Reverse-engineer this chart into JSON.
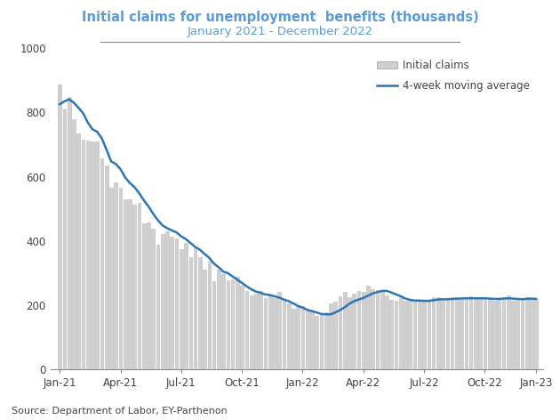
{
  "title_line1": "Initial claims for unemployment  benefits (thousands)",
  "title_line2": "January 2021 - December 2022",
  "title_color": "#5B9BD5",
  "source_text": "Source: Department of Labor, EY-Parthenon",
  "bar_color": "#D0D0D0",
  "bar_edge_color": "#B8B8B8",
  "line_color": "#2E75B6",
  "ylim": [
    0,
    1000
  ],
  "yticks": [
    0,
    200,
    400,
    600,
    800,
    1000
  ],
  "weekly_claims": [
    886,
    812,
    848,
    779,
    736,
    716,
    714,
    711,
    709,
    658,
    635,
    566,
    583,
    566,
    531,
    529,
    512,
    519,
    456,
    458,
    439,
    388,
    423,
    430,
    415,
    408,
    376,
    394,
    351,
    380,
    351,
    312,
    338,
    275,
    310,
    298,
    278,
    281,
    290,
    261,
    244,
    232,
    237,
    246,
    222,
    231,
    223,
    241,
    221,
    206,
    188,
    200,
    199,
    187,
    184,
    166,
    171,
    178,
    207,
    212,
    229,
    241,
    226,
    236,
    246,
    242,
    261,
    250,
    248,
    244,
    232,
    217,
    215,
    223,
    215,
    214,
    218,
    213,
    211,
    218,
    226,
    225,
    221,
    216,
    225,
    220,
    218,
    222,
    228,
    221,
    222,
    226,
    217,
    215,
    223,
    225,
    230,
    213,
    220,
    216,
    225,
    219,
    216
  ],
  "moving_avg": [
    826,
    835,
    841,
    831,
    815,
    798,
    769,
    748,
    740,
    720,
    685,
    648,
    640,
    624,
    598,
    581,
    568,
    549,
    527,
    508,
    485,
    465,
    449,
    440,
    433,
    427,
    415,
    406,
    394,
    382,
    373,
    360,
    348,
    330,
    319,
    305,
    300,
    290,
    280,
    270,
    259,
    250,
    243,
    239,
    234,
    232,
    228,
    224,
    218,
    213,
    206,
    198,
    193,
    186,
    182,
    178,
    173,
    172,
    172,
    178,
    185,
    194,
    205,
    213,
    218,
    223,
    230,
    237,
    241,
    245,
    245,
    240,
    234,
    228,
    221,
    217,
    215,
    215,
    214,
    214,
    216,
    218,
    219,
    219,
    220,
    221,
    221,
    222,
    222,
    222,
    222,
    222,
    221,
    220,
    220,
    221,
    222,
    221,
    220,
    219,
    220,
    221,
    220
  ],
  "xtick_labels": [
    "Jan-21",
    "Apr-21",
    "Jul-21",
    "Oct-21",
    "Jan-22",
    "Apr-22",
    "Jul-22",
    "Oct-22",
    "Jan-23"
  ],
  "xtick_positions": [
    0,
    13,
    26,
    39,
    52,
    65,
    78,
    91,
    102
  ]
}
